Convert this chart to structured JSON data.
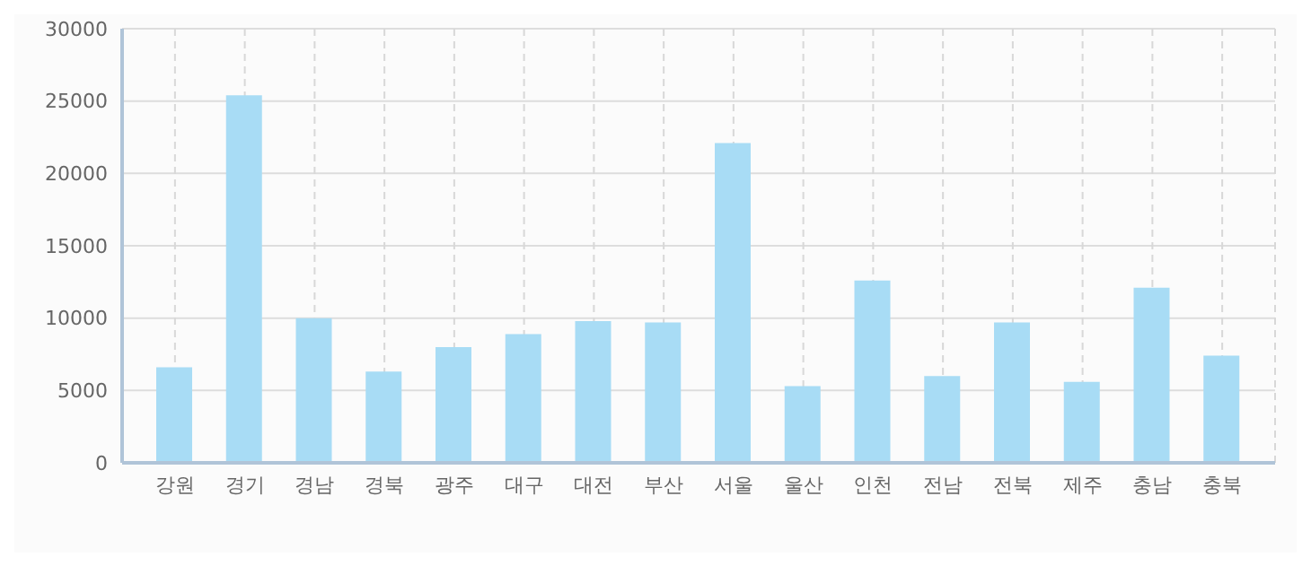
{
  "chart_data": {
    "type": "bar",
    "categories": [
      "강원",
      "경기",
      "경남",
      "경북",
      "광주",
      "대구",
      "대전",
      "부산",
      "서울",
      "울산",
      "인천",
      "전남",
      "전북",
      "제주",
      "충남",
      "충북"
    ],
    "values": [
      6600,
      25400,
      10000,
      6300,
      8000,
      8900,
      9800,
      9700,
      22100,
      5300,
      12600,
      6000,
      9700,
      5600,
      12100,
      7400
    ],
    "color": "#a8dcf5",
    "ylim": [
      0,
      30000
    ],
    "yticks": [
      0,
      5000,
      10000,
      15000,
      20000,
      25000,
      30000
    ],
    "grid": true
  }
}
